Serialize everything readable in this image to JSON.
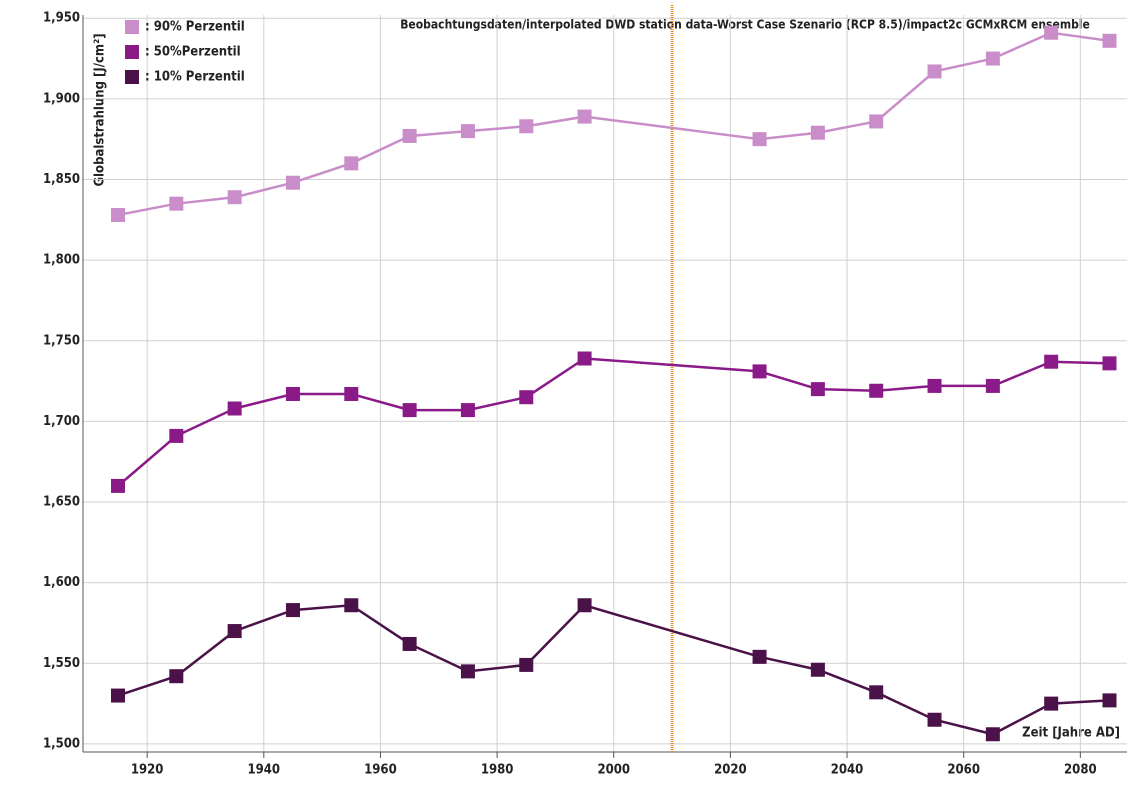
{
  "chart_data": {
    "type": "line",
    "title": "Beobachtungsdaten/interpolated DWD station data-Worst Case Szenario (RCP 8.5)/impact2c GCMxRCM ensemble",
    "y_label": "Globalstrahlung [J/cm²]",
    "x_label": "Zeit [Jahre AD]",
    "x": [
      1915,
      1925,
      1935,
      1945,
      1955,
      1965,
      1975,
      1985,
      1995,
      2025,
      2035,
      2045,
      2055,
      2065,
      2075,
      2085
    ],
    "series": [
      {
        "name": ": 90% Perzentil",
        "color": "#c98dc9",
        "values": [
          1828,
          1835,
          1839,
          1848,
          1860,
          1877,
          1880,
          1883,
          1889,
          1875,
          1879,
          1886,
          1917,
          1925,
          1941,
          1936
        ]
      },
      {
        "name": ": 50%Perzentil",
        "color": "#8b1a89",
        "values": [
          1660,
          1691,
          1708,
          1717,
          1717,
          1707,
          1707,
          1715,
          1739,
          1731,
          1720,
          1719,
          1722,
          1722,
          1737,
          1736
        ]
      },
      {
        "name": ": 10% Perzentil",
        "color": "#4a1248",
        "values": [
          1530,
          1542,
          1570,
          1583,
          1586,
          1562,
          1545,
          1549,
          1586,
          1554,
          1546,
          1532,
          1515,
          1506,
          1525,
          1527
        ]
      }
    ],
    "vline": 2010,
    "vline_color": "#e8901a",
    "xlim": [
      1909,
      2088
    ],
    "xticks": [
      1920,
      1940,
      1960,
      1980,
      2000,
      2020,
      2040,
      2060,
      2080
    ],
    "ylim": [
      1495,
      1952
    ],
    "yticks": [
      {
        "value": 1500,
        "label": "1,500"
      },
      {
        "value": 1550,
        "label": "1,550"
      },
      {
        "value": 1600,
        "label": "1,600"
      },
      {
        "value": 1650,
        "label": "1,650"
      },
      {
        "value": 1700,
        "label": "1,700"
      },
      {
        "value": 1750,
        "label": "1,750"
      },
      {
        "value": 1800,
        "label": "1,800"
      },
      {
        "value": 1850,
        "label": "1,850"
      },
      {
        "value": 1900,
        "label": "1,900"
      },
      {
        "value": 1950,
        "label": "1,950"
      }
    ],
    "grid": true
  }
}
